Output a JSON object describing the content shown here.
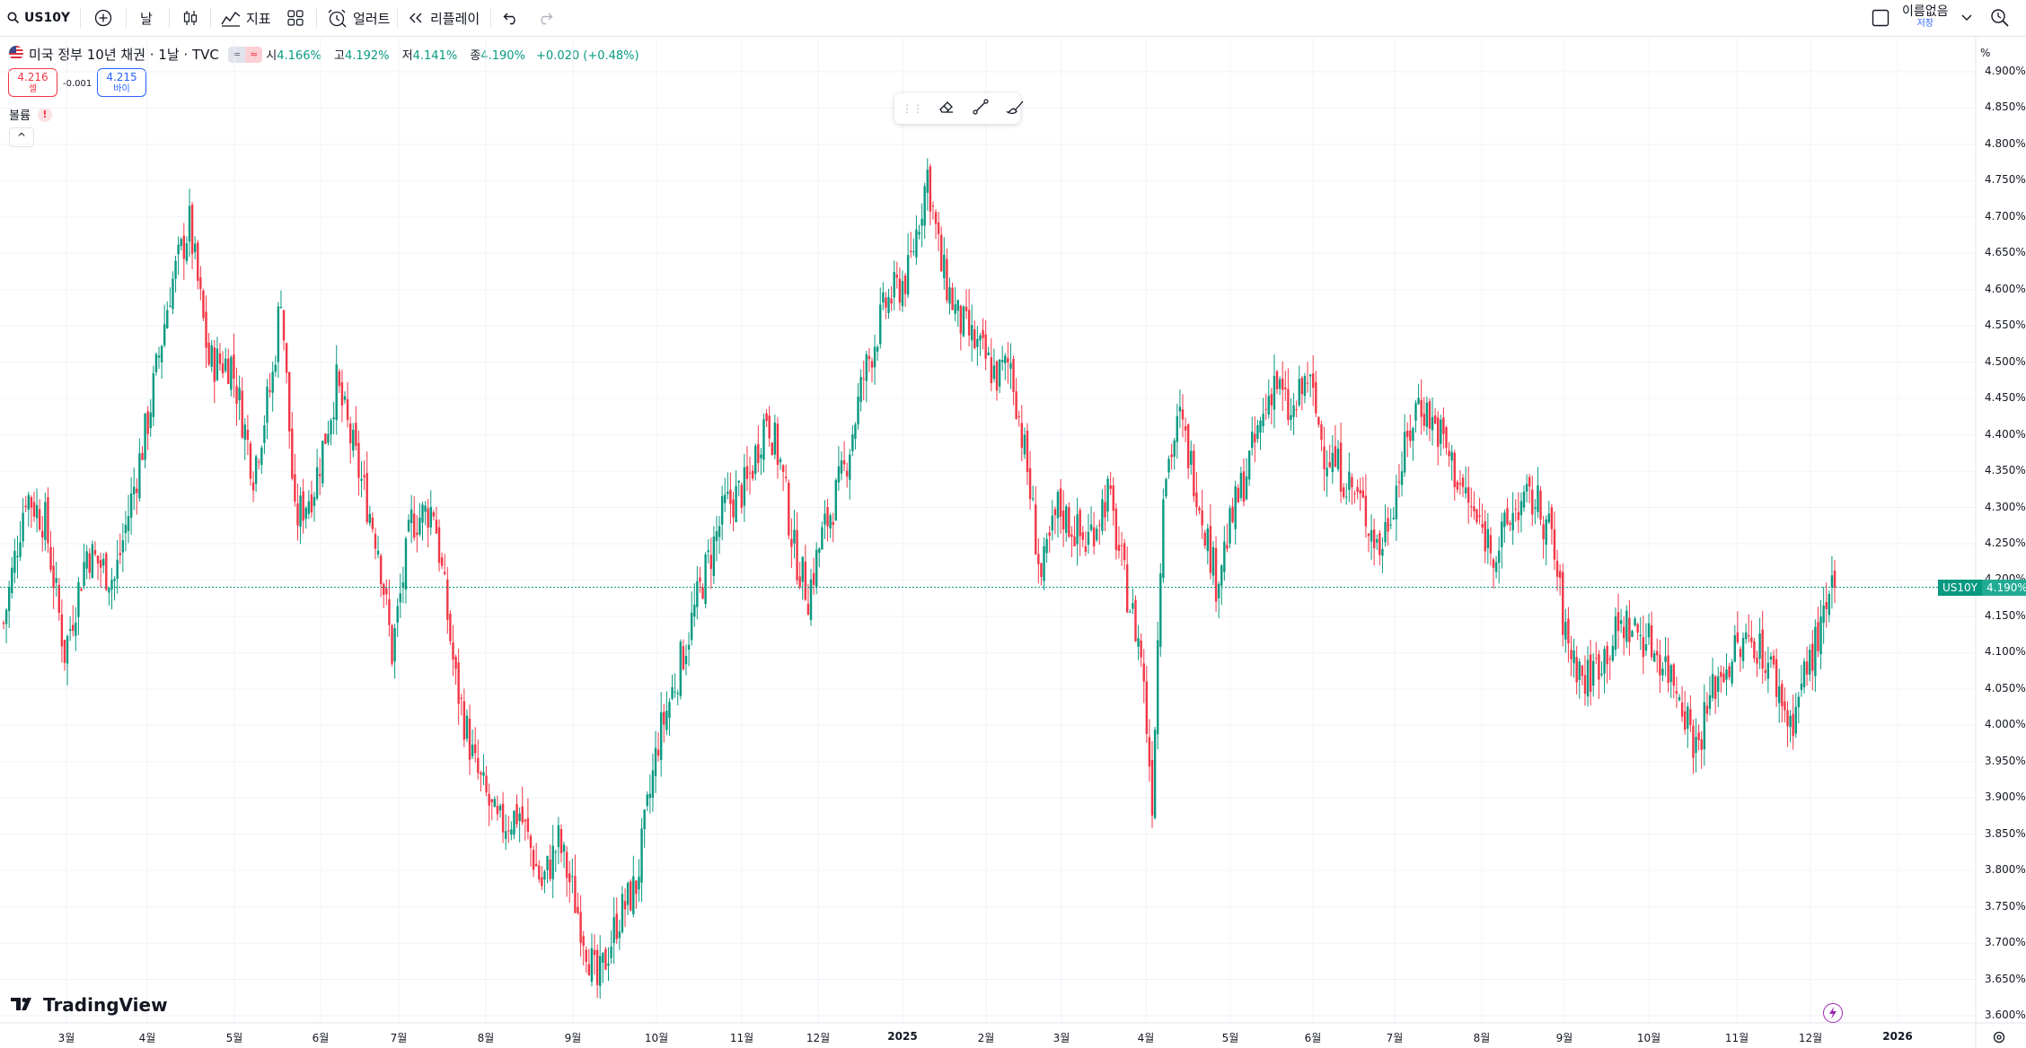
{
  "toolbar": {
    "symbol": "US10Y",
    "interval": "날",
    "indicators": "지표",
    "alerts": "얼러트",
    "replay": "리플레이",
    "layout_name": "이름없음",
    "save_label": "저장"
  },
  "legend": {
    "title": "미국 정부 10년 채권 · 1날 · TVC",
    "open_label": "시",
    "open": "4.166%",
    "high_label": "고",
    "high": "4.192%",
    "low_label": "저",
    "low": "4.141%",
    "close_label": "종",
    "close": "4.190%",
    "change": "+0.020 (+0.48%)"
  },
  "trade": {
    "sell_price": "4.216",
    "sell_label": "셀",
    "spread": "-0.001",
    "buy_price": "4.215",
    "buy_label": "바이"
  },
  "volume": {
    "label": "볼륨",
    "warning": "!"
  },
  "price_scale": {
    "unit": "%"
  },
  "last_price": {
    "symbol": "US10Y",
    "value": "4.190%"
  },
  "logo_text": "TradingView",
  "colors": {
    "up": "#089981",
    "down": "#f23645",
    "grid": "#f0f3fa",
    "text": "#131722"
  },
  "chart_data": {
    "type": "candlestick",
    "y_ticks": [
      "4.900%",
      "4.850%",
      "4.800%",
      "4.750%",
      "4.700%",
      "4.650%",
      "4.600%",
      "4.550%",
      "4.500%",
      "4.450%",
      "4.400%",
      "4.350%",
      "4.300%",
      "4.250%",
      "4.200%",
      "4.150%",
      "4.100%",
      "4.050%",
      "4.000%",
      "3.950%",
      "3.900%",
      "3.850%",
      "3.800%",
      "3.750%",
      "3.700%",
      "3.650%",
      "3.600%"
    ],
    "x_ticks": [
      "3월",
      "4월",
      "5월",
      "6월",
      "7월",
      "8월",
      "9월",
      "10월",
      "11월",
      "12월",
      "2025",
      "2월",
      "3월",
      "4월",
      "5월",
      "6월",
      "7월",
      "8월",
      "9월",
      "10월",
      "11월",
      "12월",
      "2026"
    ],
    "ylim": [
      3.6,
      4.9
    ],
    "last_value": 4.19,
    "trend": [
      [
        0,
        4.14
      ],
      [
        8,
        4.32
      ],
      [
        15,
        4.28
      ],
      [
        22,
        4.1
      ],
      [
        30,
        4.24
      ],
      [
        40,
        4.2
      ],
      [
        52,
        4.42
      ],
      [
        60,
        4.6
      ],
      [
        67,
        4.69
      ],
      [
        74,
        4.5
      ],
      [
        82,
        4.5
      ],
      [
        90,
        4.35
      ],
      [
        97,
        4.48
      ],
      [
        100,
        4.6
      ],
      [
        105,
        4.28
      ],
      [
        112,
        4.33
      ],
      [
        120,
        4.47
      ],
      [
        128,
        4.35
      ],
      [
        135,
        4.25
      ],
      [
        140,
        4.1
      ],
      [
        147,
        4.28
      ],
      [
        155,
        4.3
      ],
      [
        163,
        4.06
      ],
      [
        170,
        3.94
      ],
      [
        178,
        3.86
      ],
      [
        186,
        3.88
      ],
      [
        194,
        3.78
      ],
      [
        200,
        3.84
      ],
      [
        208,
        3.73
      ],
      [
        214,
        3.64
      ],
      [
        221,
        3.73
      ],
      [
        228,
        3.78
      ],
      [
        236,
        3.98
      ],
      [
        245,
        4.1
      ],
      [
        252,
        4.2
      ],
      [
        260,
        4.3
      ],
      [
        268,
        4.33
      ],
      [
        275,
        4.43
      ],
      [
        280,
        4.36
      ],
      [
        285,
        4.24
      ],
      [
        290,
        4.18
      ],
      [
        295,
        4.26
      ],
      [
        303,
        4.35
      ],
      [
        310,
        4.48
      ],
      [
        318,
        4.58
      ],
      [
        326,
        4.62
      ],
      [
        333,
        4.76
      ],
      [
        338,
        4.63
      ],
      [
        344,
        4.56
      ],
      [
        351,
        4.52
      ],
      [
        358,
        4.48
      ],
      [
        363,
        4.5
      ],
      [
        369,
        4.35
      ],
      [
        374,
        4.2
      ],
      [
        380,
        4.3
      ],
      [
        390,
        4.25
      ],
      [
        398,
        4.32
      ],
      [
        404,
        4.2
      ],
      [
        410,
        4.1
      ],
      [
        414,
        3.9
      ],
      [
        418,
        4.34
      ],
      [
        424,
        4.42
      ],
      [
        430,
        4.33
      ],
      [
        437,
        4.2
      ],
      [
        444,
        4.3
      ],
      [
        452,
        4.4
      ],
      [
        458,
        4.48
      ],
      [
        464,
        4.42
      ],
      [
        470,
        4.48
      ],
      [
        476,
        4.38
      ],
      [
        482,
        4.35
      ],
      [
        490,
        4.3
      ],
      [
        496,
        4.24
      ],
      [
        504,
        4.36
      ],
      [
        510,
        4.45
      ],
      [
        518,
        4.4
      ],
      [
        524,
        4.34
      ],
      [
        531,
        4.28
      ],
      [
        538,
        4.24
      ],
      [
        545,
        4.3
      ],
      [
        552,
        4.31
      ],
      [
        558,
        4.26
      ],
      [
        563,
        4.12
      ],
      [
        570,
        4.06
      ],
      [
        577,
        4.1
      ],
      [
        584,
        4.14
      ],
      [
        592,
        4.12
      ],
      [
        598,
        4.09
      ],
      [
        604,
        4.05
      ],
      [
        610,
        3.97
      ],
      [
        617,
        4.06
      ],
      [
        624,
        4.1
      ],
      [
        631,
        4.12
      ],
      [
        638,
        4.07
      ],
      [
        644,
        4.0
      ],
      [
        650,
        4.08
      ],
      [
        656,
        4.14
      ],
      [
        660,
        4.19
      ]
    ]
  }
}
